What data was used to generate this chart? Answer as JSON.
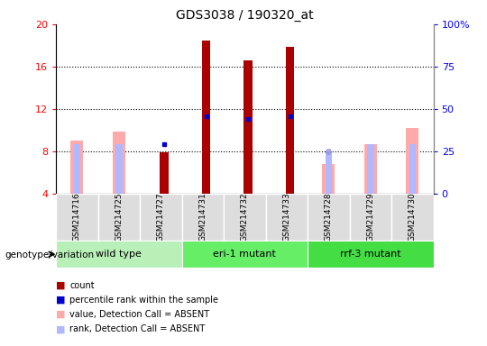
{
  "title": "GDS3038 / 190320_at",
  "samples": [
    "GSM214716",
    "GSM214725",
    "GSM214727",
    "GSM214731",
    "GSM214732",
    "GSM214733",
    "GSM214728",
    "GSM214729",
    "GSM214730"
  ],
  "ylim": [
    4,
    20
  ],
  "yticks": [
    4,
    8,
    12,
    16,
    20
  ],
  "right_ylabels": [
    "0",
    "25",
    "50",
    "75",
    "100%"
  ],
  "bar_color_present": "#aa0000",
  "bar_color_absent_value": "#ffaaaa",
  "bar_color_absent_rank": "#b0b8ff",
  "rank_dot_present": "#0000cc",
  "rank_dot_absent": "#9090dd",
  "count_bars": [
    {
      "sample": "GSM214727",
      "value": 7.9
    },
    {
      "sample": "GSM214731",
      "value": 18.5
    },
    {
      "sample": "GSM214732",
      "value": 16.6
    },
    {
      "sample": "GSM214733",
      "value": 17.9
    }
  ],
  "value_bars_absent": [
    {
      "sample": "GSM214716",
      "value": 9.0
    },
    {
      "sample": "GSM214725",
      "value": 9.9
    },
    {
      "sample": "GSM214728",
      "value": 6.8
    },
    {
      "sample": "GSM214729",
      "value": 8.7
    },
    {
      "sample": "GSM214730",
      "value": 10.2
    }
  ],
  "rank_bars_absent": [
    {
      "sample": "GSM214716",
      "value": 8.7
    },
    {
      "sample": "GSM214725",
      "value": 8.7
    },
    {
      "sample": "GSM214728",
      "value": 8.0
    },
    {
      "sample": "GSM214729",
      "value": 8.7
    },
    {
      "sample": "GSM214730",
      "value": 8.7
    }
  ],
  "blue_squares_present": [
    {
      "sample": "GSM214727",
      "value": 8.7
    },
    {
      "sample": "GSM214731",
      "value": 11.3
    },
    {
      "sample": "GSM214732",
      "value": 11.1
    },
    {
      "sample": "GSM214733",
      "value": 11.3
    }
  ],
  "blue_circles_absent": [
    {
      "sample": "GSM214728",
      "value": 8.0
    }
  ],
  "rank_bars_present": [
    {
      "sample": "GSM214731",
      "value": 11.1
    },
    {
      "sample": "GSM214732",
      "value": 11.1
    },
    {
      "sample": "GSM214733",
      "value": 11.3
    }
  ],
  "group_colors": [
    "#ccffcc",
    "#66ee66",
    "#33dd33"
  ],
  "group_ranges": [
    [
      0,
      2
    ],
    [
      3,
      5
    ],
    [
      6,
      8
    ]
  ],
  "group_names": [
    "wild type",
    "eri-1 mutant",
    "rrf-3 mutant"
  ],
  "legend_colors": [
    "#aa0000",
    "#0000cc",
    "#ffaaaa",
    "#b0b8ff"
  ],
  "legend_labels": [
    "count",
    "percentile rank within the sample",
    "value, Detection Call = ABSENT",
    "rank, Detection Call = ABSENT"
  ],
  "background_color": "#ffffff"
}
